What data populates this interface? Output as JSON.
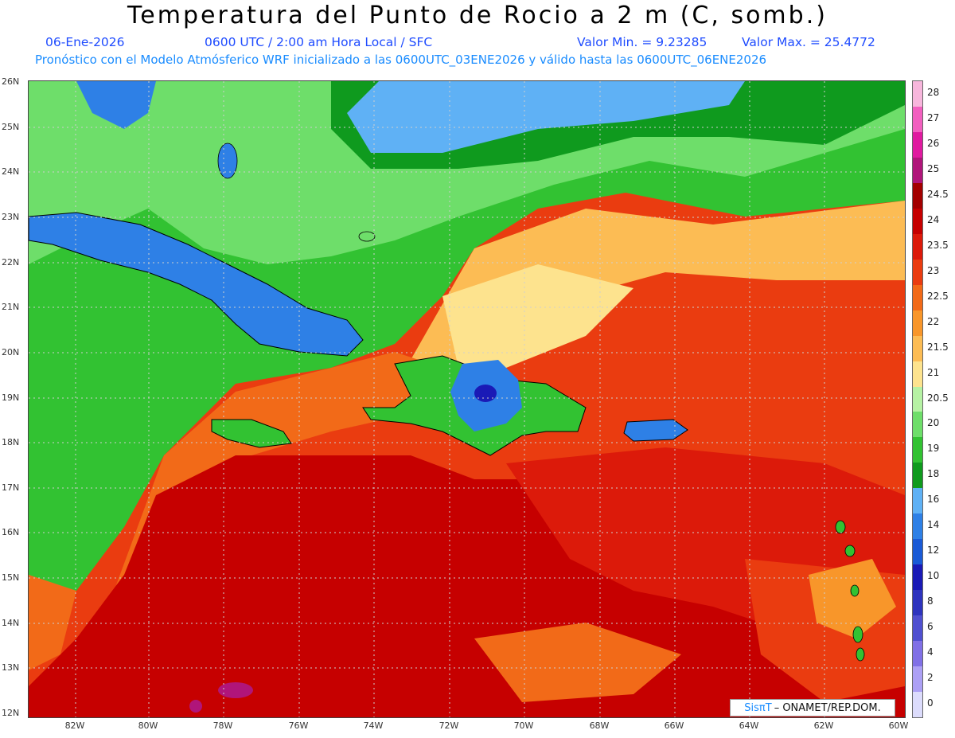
{
  "title": "Temperatura del Punto de Rocio a 2 m (C, somb.)",
  "date": "06-Ene-2026",
  "time_info": "0600 UTC / 2:00 am Hora Local / SFC",
  "value_min": "Valor Min. = 9.23285",
  "value_max": "Valor Max. = 25.4772",
  "model_info": "Pronóstico con el Modelo Atmósferico WRF inicializado a las 0600UTC_03ENE2026 y válido hasta las  0600UTC_06ENE2026",
  "credit_brand": "SisπT",
  "credit_org": "– ONAMET/REP.DOM.",
  "lat_labels": [
    "26N",
    "25N",
    "24N",
    "23N",
    "22N",
    "21N",
    "20N",
    "19N",
    "18N",
    "17N",
    "16N",
    "15N",
    "14N",
    "13N",
    "12N"
  ],
  "lon_labels": [
    "82W",
    "80W",
    "78W",
    "76W",
    "74W",
    "72W",
    "70W",
    "68W",
    "66W",
    "64W",
    "62W",
    "60W"
  ],
  "colorbar": {
    "labels": [
      "28",
      "27",
      "26",
      "25",
      "24.5",
      "24",
      "23.5",
      "23",
      "22.5",
      "22",
      "21.5",
      "21",
      "20.5",
      "20",
      "19",
      "18",
      "16",
      "14",
      "12",
      "10",
      "8",
      "6",
      "4",
      "2",
      "0"
    ],
    "colors": [
      "#f7b6dc",
      "#f25fbf",
      "#e01aa0",
      "#b0157a",
      "#a30000",
      "#c60000",
      "#dc1a0a",
      "#ea3c10",
      "#f26a18",
      "#f8962a",
      "#fcbc54",
      "#fde38e",
      "#b6f2a4",
      "#6ede6a",
      "#32c232",
      "#0f9a1e",
      "#5fb1f5",
      "#2e80e6",
      "#1a5ad6",
      "#1a1ab6",
      "#2e34be",
      "#5050d0",
      "#8070e6",
      "#aca0f5",
      "#dcdcfc"
    ]
  }
}
